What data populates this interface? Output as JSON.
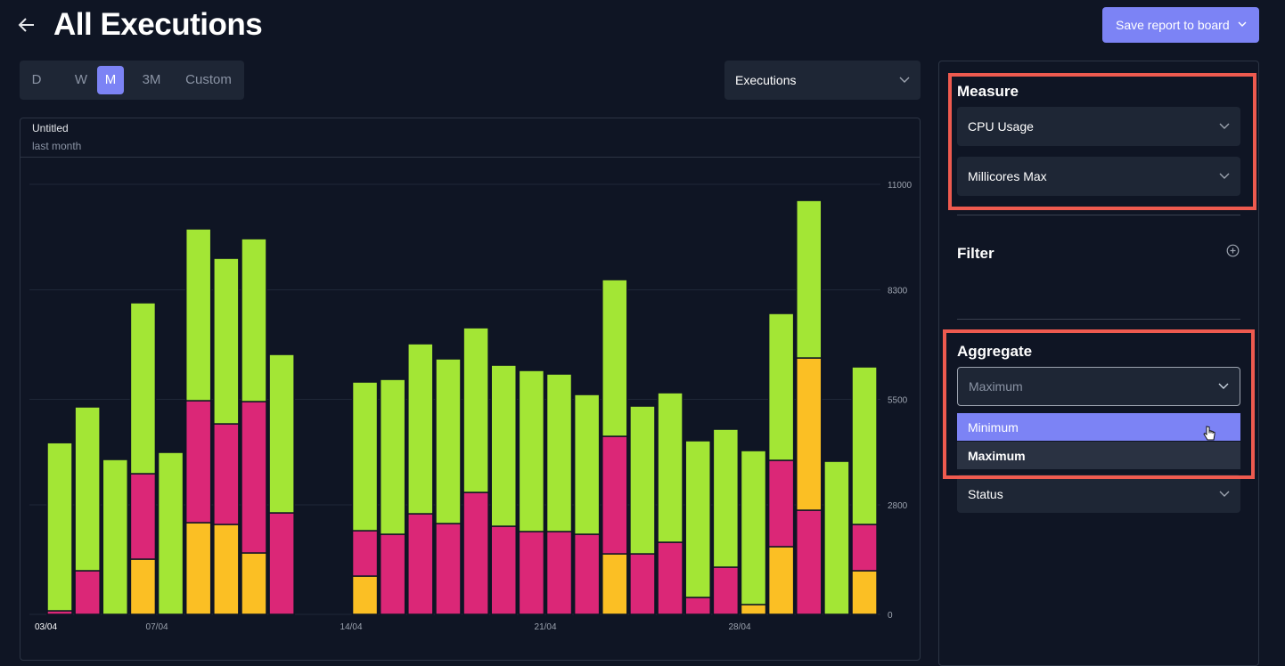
{
  "header": {
    "title": "All Executions",
    "button": "Save report to board"
  },
  "tabs": {
    "items": [
      "D",
      "W",
      "M",
      "3M",
      "Custom"
    ],
    "active": 2
  },
  "metric_select": "Executions",
  "chart_card": {
    "title": "Untitled",
    "subtitle": "last month"
  },
  "chart_data": {
    "type": "bar",
    "stacked": true,
    "categories": [
      "03/04",
      null,
      null,
      null,
      "07/04",
      null,
      null,
      null,
      null,
      null,
      null,
      "14/04",
      null,
      null,
      null,
      null,
      null,
      null,
      "21/04",
      null,
      null,
      null,
      null,
      null,
      null,
      "28/04",
      null,
      null,
      null,
      null
    ],
    "series": [
      {
        "color": "#fbbf24",
        "values": [
          0,
          0,
          0,
          1412,
          0,
          2345,
          2300,
          1571,
          0,
          null,
          null,
          979,
          0,
          0,
          0,
          0,
          0,
          0,
          0,
          0,
          1548,
          0,
          0,
          0,
          0,
          250,
          1731,
          3894,
          0,
          1116
        ]
      },
      {
        "color": "#db2777",
        "values": [
          91,
          1116,
          0,
          2186,
          0,
          3120,
          2573,
          3871,
          2596,
          null,
          null,
          1161,
          2049,
          2573,
          2323,
          3119,
          2254,
          2118,
          2118,
          2049,
          3006,
          1548,
          1844,
          433,
          1207,
          0,
          2209,
          2664,
          0,
          1184
        ]
      },
      {
        "color": "#a3e635",
        "values": [
          4300,
          4190,
          3962,
          4372,
          4144,
          4395,
          4235,
          4167,
          4053,
          null,
          null,
          3803,
          3962,
          4349,
          4212,
          4212,
          4121,
          4121,
          4030,
          3575,
          4008,
          3780,
          3825,
          4008,
          3529,
          3939,
          3757,
          4030,
          3916,
          4030
        ]
      }
    ],
    "ylim": [
      0,
      11000
    ],
    "yticks": [
      0,
      2800,
      5500,
      8300,
      11000
    ],
    "grid": true
  },
  "panel": {
    "measure": {
      "heading": "Measure",
      "fields": [
        "CPU Usage",
        "Millicores Max"
      ]
    },
    "filter": {
      "heading": "Filter"
    },
    "aggregate": {
      "heading": "Aggregate",
      "selected": "Maximum",
      "options": [
        "Minimum",
        "Maximum"
      ],
      "highlighted": 0
    },
    "group_by": "Status"
  }
}
